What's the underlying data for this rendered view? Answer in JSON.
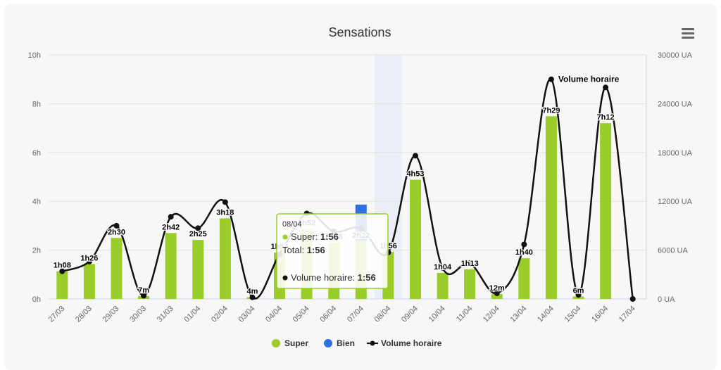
{
  "chart_data": {
    "type": "bar",
    "title": "Sensations",
    "categories": [
      "27/03",
      "28/03",
      "29/03",
      "30/03",
      "31/03",
      "01/04",
      "02/04",
      "03/04",
      "04/04",
      "05/04",
      "06/04",
      "07/04",
      "08/04",
      "09/04",
      "10/04",
      "11/04",
      "12/04",
      "13/04",
      "14/04",
      "15/04",
      "16/04",
      "17/04"
    ],
    "series": [
      {
        "name": "Super",
        "type": "bar",
        "axis": "left",
        "color": "#9acd2a",
        "values_hours": [
          1.133,
          1.433,
          2.5,
          0.117,
          2.7,
          2.417,
          3.3,
          0.067,
          1.9,
          2.867,
          2.3,
          2.367,
          1.933,
          4.883,
          1.067,
          1.217,
          0.2,
          1.667,
          7.483,
          0.1,
          7.2,
          0
        ],
        "labels": [
          "1h08",
          "1h26",
          "2h30",
          "7m",
          "2h42",
          "2h25",
          "3h18",
          "4m",
          "1h54",
          "2h52",
          "2h18",
          "2h22",
          "1h56",
          "4h53",
          "1h04",
          "1h13",
          "12m",
          "1h40",
          "7h29",
          "6m",
          "7h12",
          ""
        ]
      },
      {
        "name": "Bien",
        "type": "bar",
        "axis": "left",
        "color": "#2f6fde",
        "values_hours": [
          0,
          0,
          0,
          0,
          0,
          0,
          0,
          0,
          0,
          0,
          0,
          1.5,
          0,
          0,
          0,
          0,
          0,
          0,
          0,
          0,
          0,
          0
        ]
      },
      {
        "name": "Volume horaire",
        "type": "line",
        "axis": "right",
        "color": "#111111",
        "values": [
          3400,
          4600,
          9000,
          400,
          10100,
          8700,
          11900,
          200,
          5500,
          10500,
          8300,
          8700,
          5700,
          17600,
          3800,
          4400,
          700,
          6700,
          27000,
          500,
          26000,
          0
        ]
      }
    ],
    "y_left": {
      "min": 0,
      "max": 10,
      "ticks": [
        "0h",
        "2h",
        "4h",
        "6h",
        "8h",
        "10h"
      ]
    },
    "y_right": {
      "min": 0,
      "max": 30000,
      "ticks": [
        "0 UA",
        "6000 UA",
        "12000 UA",
        "18000 UA",
        "24000 UA",
        "30000 UA"
      ]
    },
    "grid": true,
    "legend_position": "bottom",
    "highlighted_index": 12,
    "line_annotation": {
      "index": 18,
      "text": "Volume horaire"
    },
    "tooltip": {
      "date": "08/04",
      "rows": [
        {
          "label": "Super: ",
          "value": "1:56"
        }
      ],
      "total_label": "Total: ",
      "total_value": "1:56",
      "line_label": "Volume horaire: ",
      "line_value": "1:56"
    }
  },
  "legend": [
    {
      "name": "Super",
      "color": "#9acd2a",
      "symbol": "circle"
    },
    {
      "name": "Bien",
      "color": "#2f6fde",
      "symbol": "circle"
    },
    {
      "name": "Volume horaire",
      "color": "#111111",
      "symbol": "line-dot"
    }
  ]
}
